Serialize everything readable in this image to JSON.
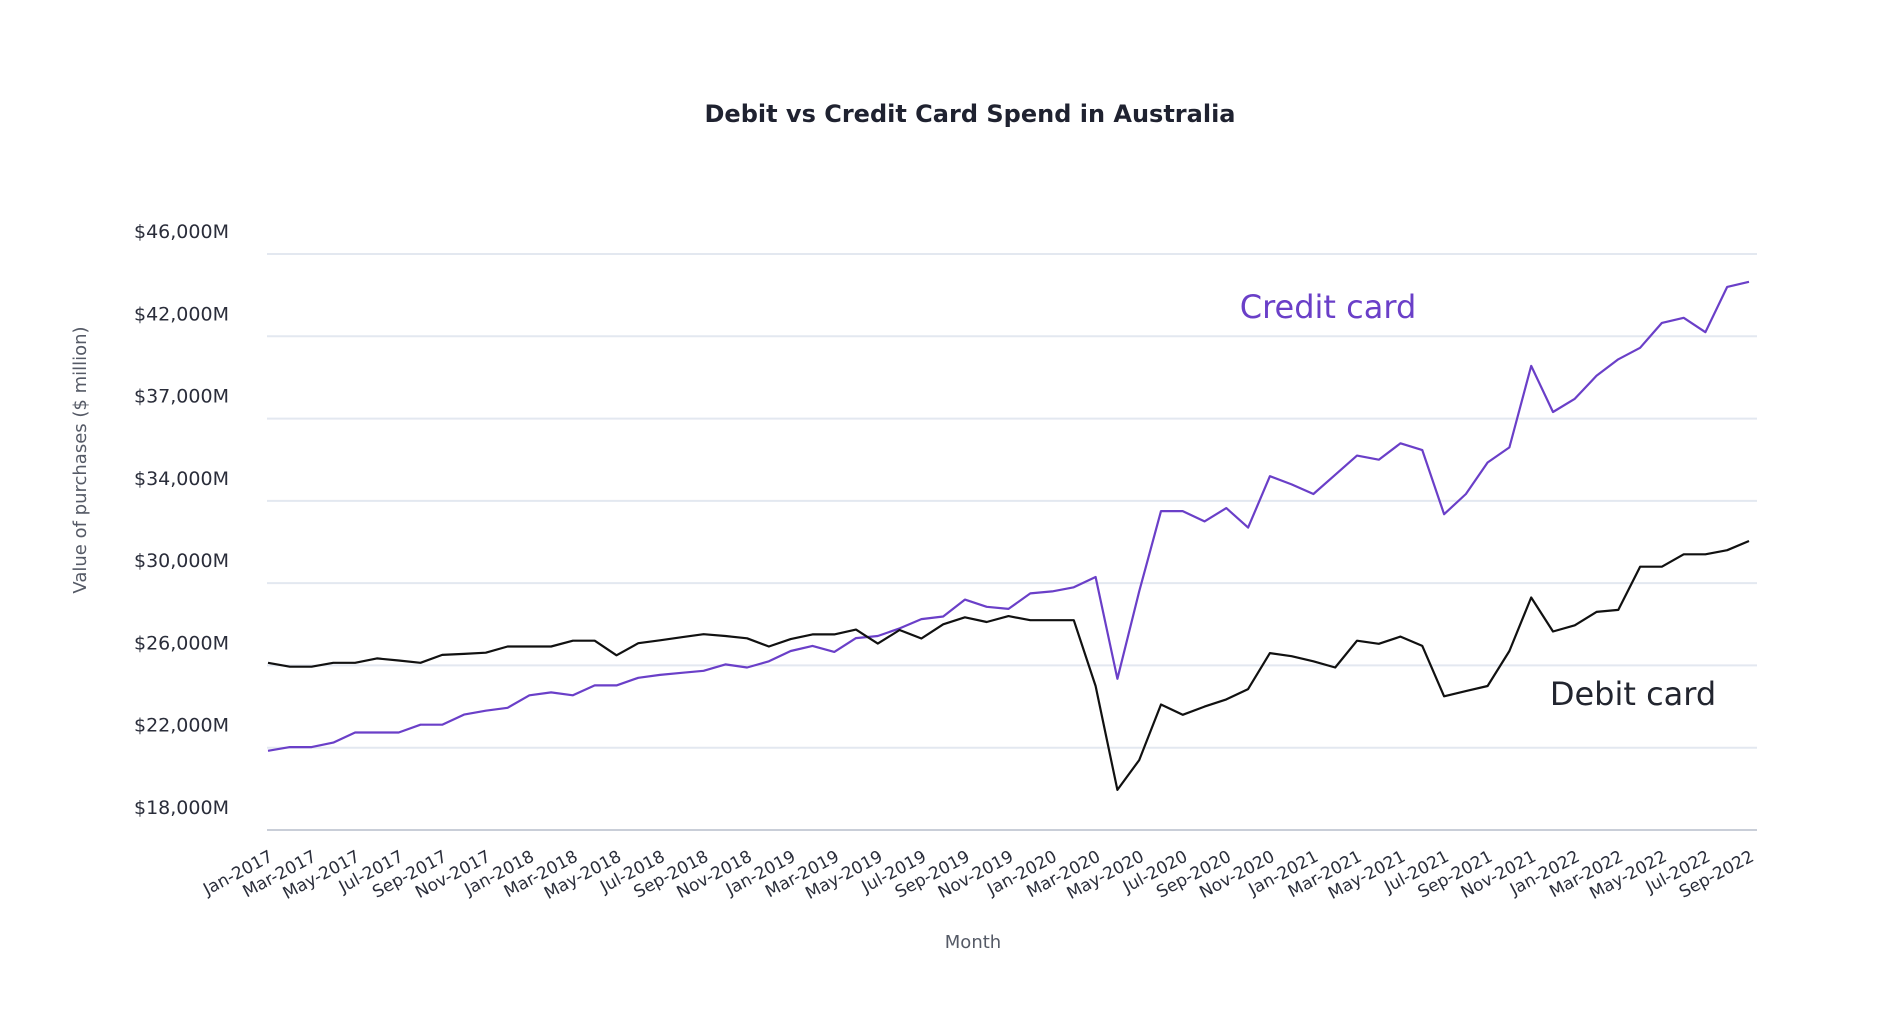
{
  "chart_data": {
    "type": "line",
    "title": "Debit vs Credit Card Spend in Australia",
    "xlabel": "Month",
    "ylabel": "Value of purchases ($ million)",
    "y_tick_labels": [
      "$18,000M",
      "$22,000M",
      "$26,000M",
      "$30,000M",
      "$34,000M",
      "$37,000M",
      "$42,000M",
      "$46,000M"
    ],
    "y_tick_values": [
      18000,
      22000,
      26000,
      30000,
      34000,
      37000,
      42000,
      46000
    ],
    "grid": true,
    "legend": "inline labels",
    "x_months": [
      "Jan-2017",
      "Feb-2017",
      "Mar-2017",
      "Apr-2017",
      "May-2017",
      "Jun-2017",
      "Jul-2017",
      "Aug-2017",
      "Sep-2017",
      "Oct-2017",
      "Nov-2017",
      "Dec-2017",
      "Jan-2018",
      "Feb-2018",
      "Mar-2018",
      "Apr-2018",
      "May-2018",
      "Jun-2018",
      "Jul-2018",
      "Aug-2018",
      "Sep-2018",
      "Oct-2018",
      "Nov-2018",
      "Dec-2018",
      "Jan-2019",
      "Feb-2019",
      "Mar-2019",
      "Apr-2019",
      "May-2019",
      "Jun-2019",
      "Jul-2019",
      "Aug-2019",
      "Sep-2019",
      "Oct-2019",
      "Nov-2019",
      "Dec-2019",
      "Jan-2020",
      "Feb-2020",
      "Mar-2020",
      "Apr-2020",
      "May-2020",
      "Jun-2020",
      "Jul-2020",
      "Aug-2020",
      "Sep-2020",
      "Oct-2020",
      "Nov-2020",
      "Dec-2020",
      "Jan-2021",
      "Feb-2021",
      "Mar-2021",
      "Apr-2021",
      "May-2021",
      "Jun-2021",
      "Jul-2021",
      "Aug-2021",
      "Sep-2021",
      "Oct-2021",
      "Nov-2021",
      "Dec-2021",
      "Jan-2022",
      "Feb-2022",
      "Mar-2022",
      "Apr-2022",
      "May-2022",
      "Jun-2022",
      "Jul-2022",
      "Aug-2022",
      "Sep-2022"
    ],
    "x_tick_labels": [
      "Jan-2017",
      "Mar-2017",
      "May-2017",
      "Jul-2017",
      "Sep-2017",
      "Nov-2017",
      "Jan-2018",
      "Mar-2018",
      "May-2018",
      "Jul-2018",
      "Sep-2018",
      "Nov-2018",
      "Jan-2019",
      "Mar-2019",
      "May-2019",
      "Jul-2019",
      "Sep-2019",
      "Nov-2019",
      "Jan-2020",
      "Mar-2020",
      "May-2020",
      "Jul-2020",
      "Sep-2020",
      "Nov-2020",
      "Jan-2021",
      "Mar-2021",
      "May-2021",
      "Jul-2021",
      "Sep-2021",
      "Nov-2021",
      "Jan-2022",
      "Mar-2022",
      "May-2022",
      "Jul-2022",
      "Sep-2022"
    ],
    "series": [
      {
        "name": "Credit card",
        "color": "#6a3fc8",
        "values": [
          21850,
          22030,
          22030,
          22250,
          22740,
          22740,
          22740,
          23120,
          23120,
          23610,
          23800,
          23940,
          24550,
          24690,
          24550,
          25030,
          25030,
          25400,
          25540,
          25640,
          25740,
          26050,
          25900,
          26200,
          26700,
          26950,
          26660,
          27330,
          27430,
          27800,
          28250,
          28380,
          29200,
          28850,
          28750,
          29500,
          29600,
          29800,
          30300,
          25350,
          29600,
          33500,
          33500,
          33000,
          33650,
          32700,
          34900,
          34600,
          34250,
          34950,
          35650,
          35500,
          36100,
          35850,
          33350,
          34250,
          35400,
          35950,
          40200,
          37400,
          38200,
          39600,
          40600,
          41300,
          42650,
          42900,
          42200,
          44400,
          44650
        ]
      },
      {
        "name": "Debit card",
        "color": "#111111",
        "values": [
          26130,
          25940,
          25940,
          26130,
          26130,
          26340,
          26240,
          26130,
          26510,
          26560,
          26620,
          26920,
          26920,
          26920,
          27200,
          27200,
          26490,
          27080,
          27220,
          27370,
          27520,
          27430,
          27320,
          26920,
          27280,
          27510,
          27510,
          27740,
          27060,
          27720,
          27310,
          28000,
          28340,
          28110,
          28400,
          28200,
          28200,
          28200,
          25000,
          19950,
          21400,
          24100,
          23600,
          24000,
          24350,
          24850,
          26600,
          26450,
          26200,
          25900,
          27200,
          27050,
          27400,
          26950,
          24500,
          24750,
          25000,
          26700,
          29300,
          27650,
          27950,
          28600,
          28700,
          30800,
          30800,
          31400,
          31400,
          31600,
          32050
        ]
      }
    ]
  }
}
